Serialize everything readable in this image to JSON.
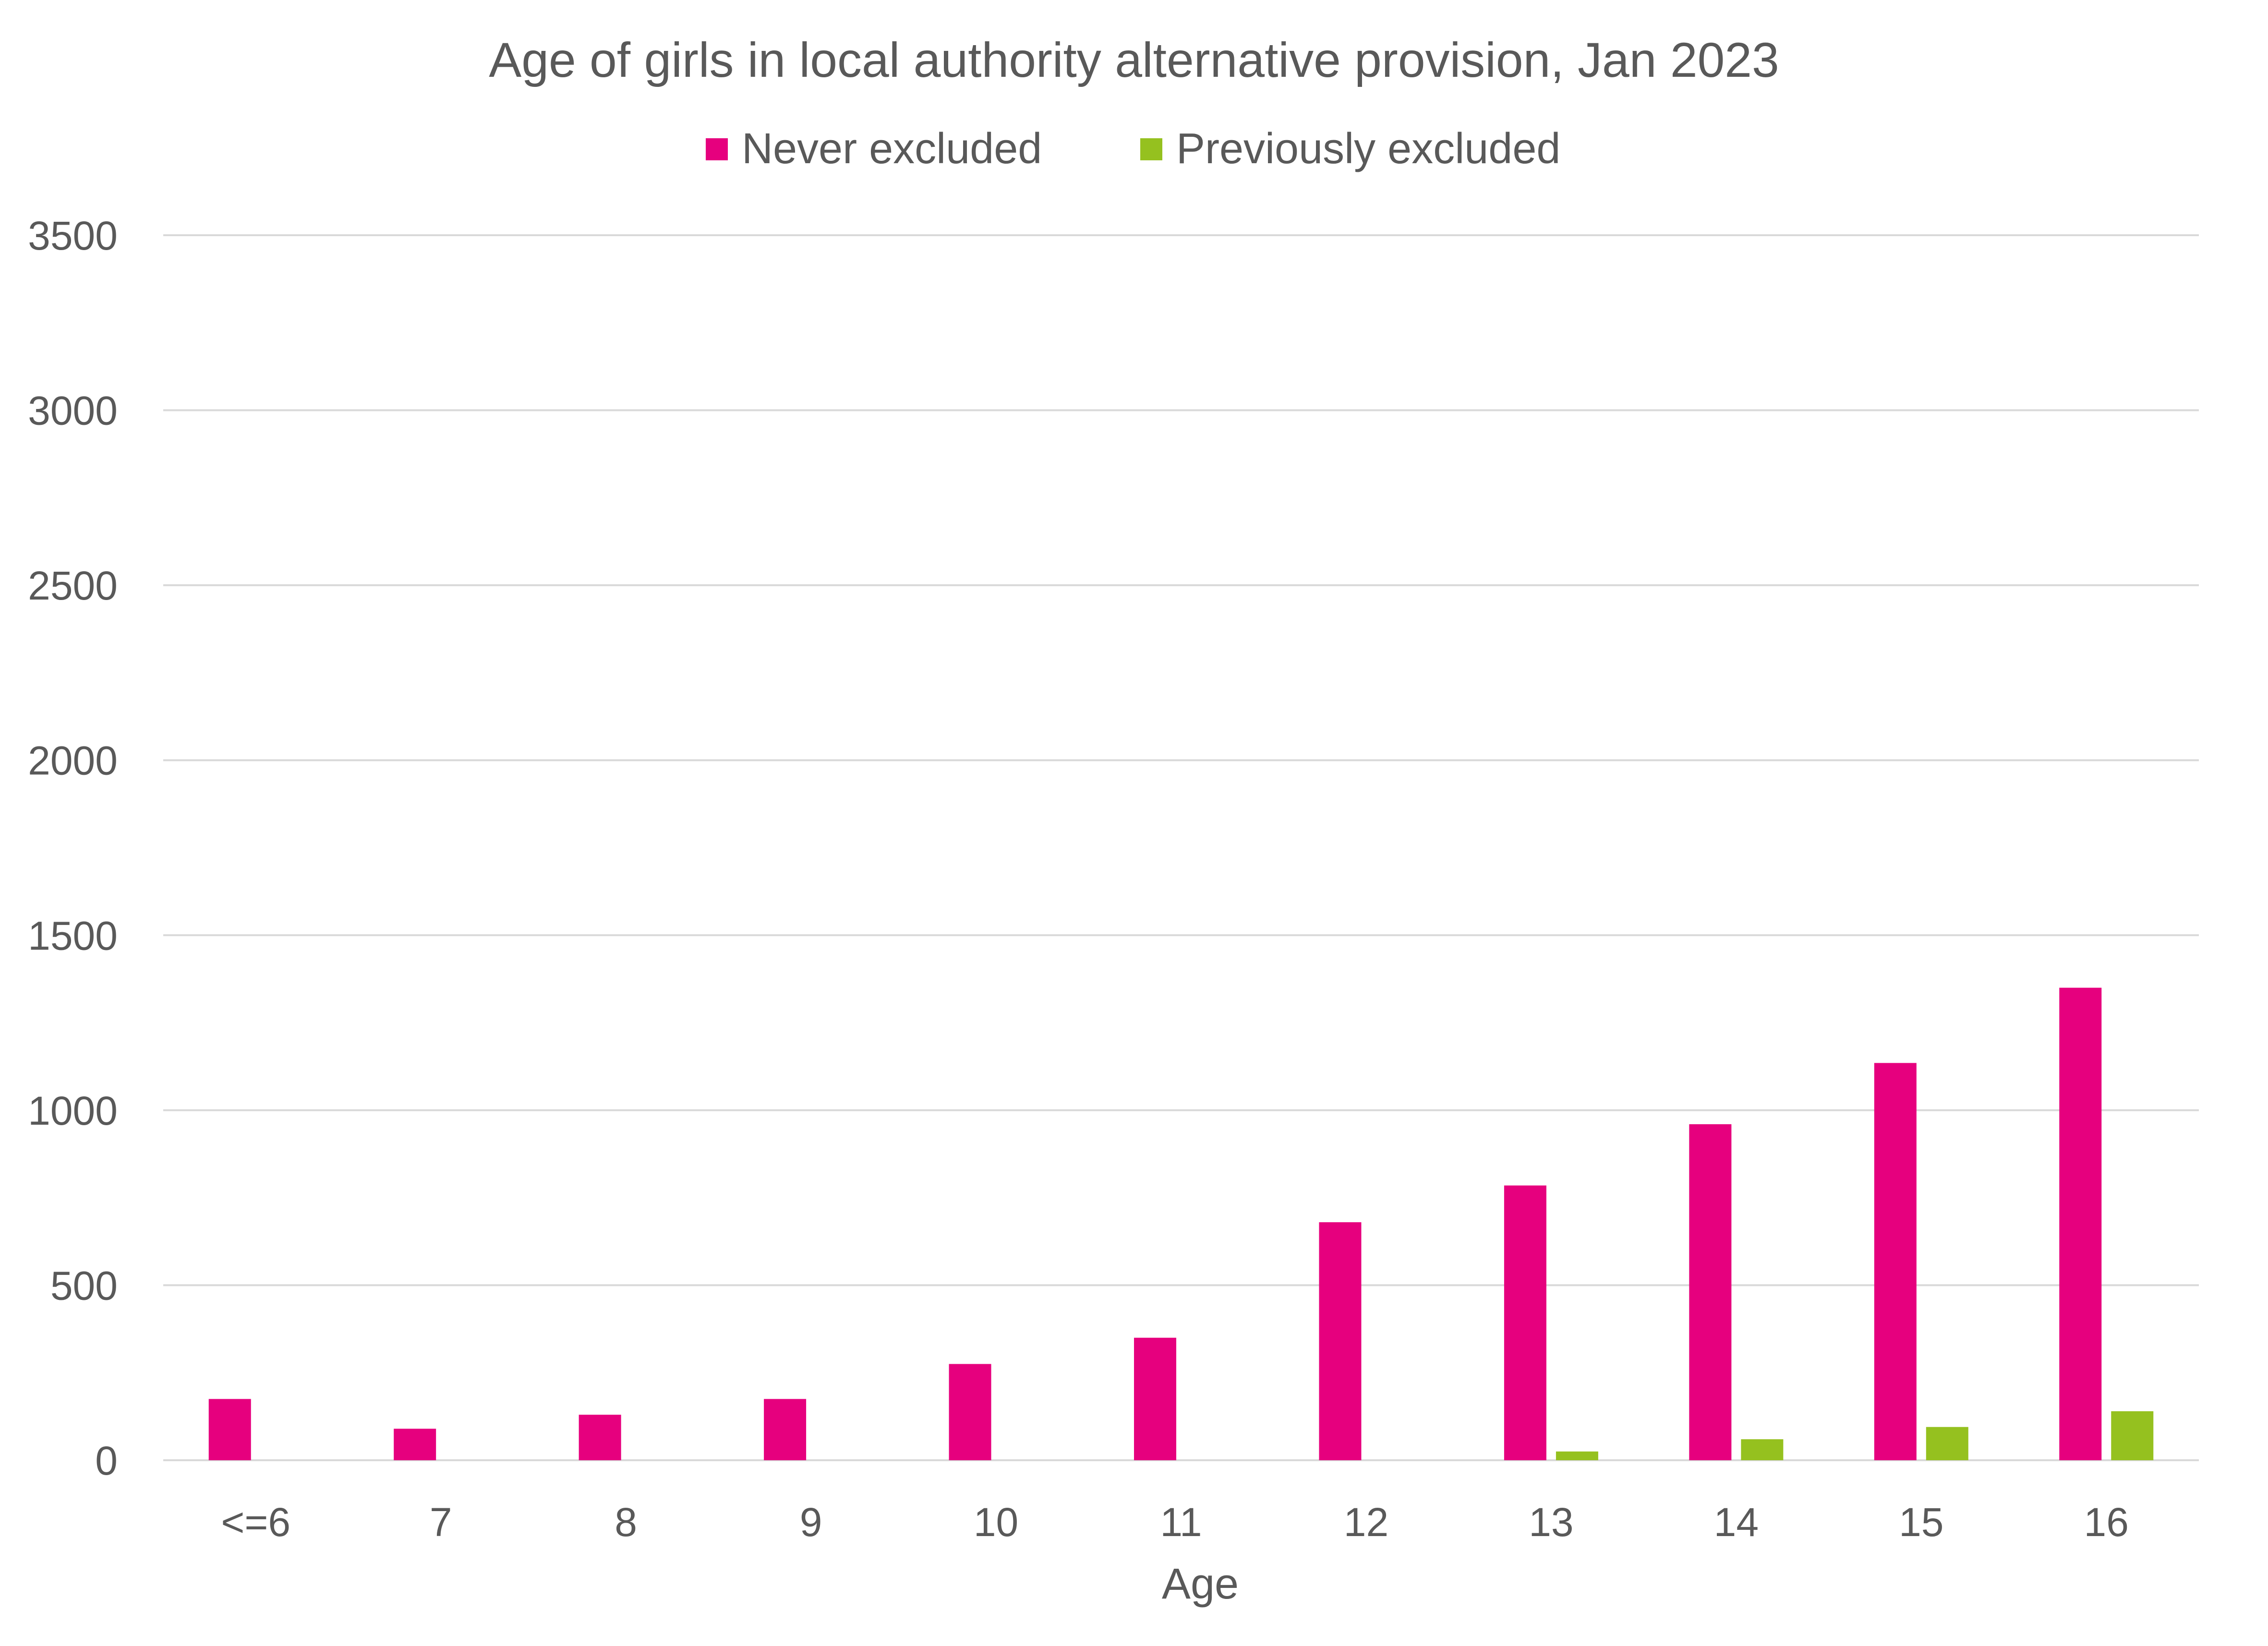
{
  "chart_data": {
    "type": "bar",
    "title": "Age of girls in local authority alternative provision, Jan 2023",
    "xlabel": "Age",
    "ylabel": "",
    "ylim": [
      0,
      3500
    ],
    "yticks": [
      0,
      500,
      1000,
      1500,
      2000,
      2500,
      3000,
      3500
    ],
    "categories": [
      "<=6",
      "7",
      "8",
      "9",
      "10",
      "11",
      "12",
      "13",
      "14",
      "15",
      "16"
    ],
    "series": [
      {
        "name": "Never excluded",
        "color": "#e6007e",
        "values": [
          175,
          90,
          130,
          175,
          275,
          350,
          680,
          785,
          960,
          1135,
          1350
        ]
      },
      {
        "name": "Previously excluded",
        "color": "#95c11f",
        "values": [
          0,
          0,
          0,
          0,
          0,
          0,
          0,
          25,
          60,
          95,
          140
        ]
      }
    ],
    "grid": true,
    "legend_position": "top-center"
  }
}
